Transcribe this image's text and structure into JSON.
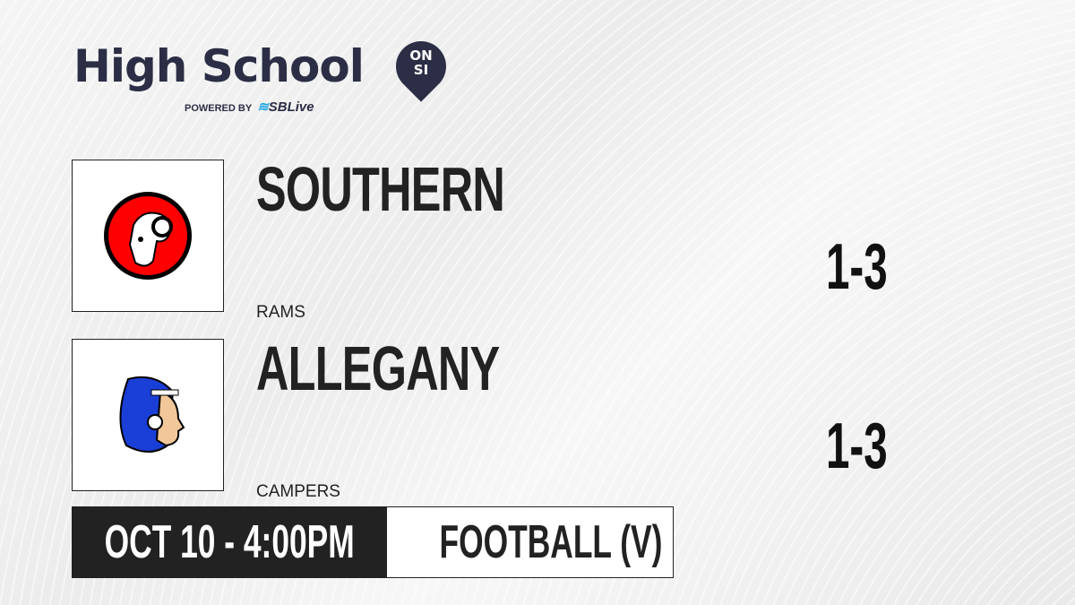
{
  "brand": {
    "title": "High School",
    "badge_line1": "ON",
    "badge_line2": "SI",
    "powered_by": "POWERED BY",
    "partner": "SBLive"
  },
  "teams": [
    {
      "name": "SOUTHERN",
      "mascot": "RAMS",
      "record": "1-3",
      "logo_icon": "ram-mascot-icon",
      "logo_color": "#ff0000"
    },
    {
      "name": "ALLEGANY",
      "mascot": "CAMPERS",
      "record": "1-3",
      "logo_icon": "native-headdress-mascot-icon",
      "logo_color": "#1a3fd6"
    }
  ],
  "game": {
    "datetime": "OCT 10 - 4:00PM",
    "sport": "FOOTBALL (V)"
  }
}
